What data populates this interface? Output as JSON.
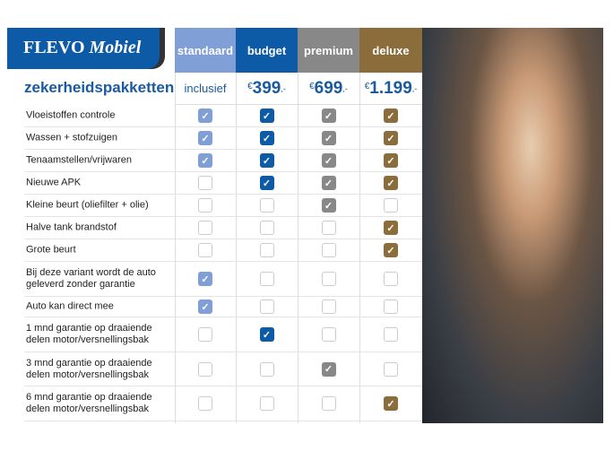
{
  "logo": {
    "brand": "FLEVO",
    "sub": "Mobiel"
  },
  "title": "zekerheidspakketten",
  "columns": [
    {
      "name": "standaard",
      "price": "inclusief",
      "color": "#809fd6"
    },
    {
      "name": "budget",
      "currency": "€",
      "price": "399",
      "suffix": ",-",
      "color": "#0d5aa7"
    },
    {
      "name": "premium",
      "currency": "€",
      "price": "699",
      "suffix": ",-",
      "color": "#888888"
    },
    {
      "name": "deluxe",
      "currency": "€",
      "price": "1.199",
      "suffix": ",-",
      "color": "#8a6d3b"
    }
  ],
  "rows": [
    {
      "label": "Vloeistoffen controle",
      "checks": [
        true,
        true,
        true,
        true
      ]
    },
    {
      "label": "Wassen + stofzuigen",
      "checks": [
        true,
        true,
        true,
        true
      ]
    },
    {
      "label": "Tenaamstellen/vrijwaren",
      "checks": [
        true,
        true,
        true,
        true
      ]
    },
    {
      "label": "Nieuwe APK",
      "checks": [
        false,
        true,
        true,
        true
      ]
    },
    {
      "label": "Kleine beurt (oliefilter + olie)",
      "checks": [
        false,
        false,
        true,
        false
      ]
    },
    {
      "label": "Halve tank brandstof",
      "checks": [
        false,
        false,
        false,
        true
      ]
    },
    {
      "label": "Grote beurt",
      "checks": [
        false,
        false,
        false,
        true
      ]
    },
    {
      "label": "Bij deze variant wordt de auto geleverd zonder garantie",
      "checks": [
        true,
        false,
        false,
        false
      ]
    },
    {
      "label": "Auto kan direct mee",
      "checks": [
        true,
        false,
        false,
        false
      ]
    },
    {
      "label": "1 mnd garantie op draaiende delen motor/versnellingsbak",
      "checks": [
        false,
        true,
        false,
        false
      ]
    },
    {
      "label": "3 mnd garantie op draaiende delen motor/versnellingsbak",
      "checks": [
        false,
        false,
        true,
        false
      ]
    },
    {
      "label": "6 mnd garantie op draaiende delen motor/versnellingsbak",
      "checks": [
        false,
        false,
        false,
        true
      ]
    }
  ]
}
